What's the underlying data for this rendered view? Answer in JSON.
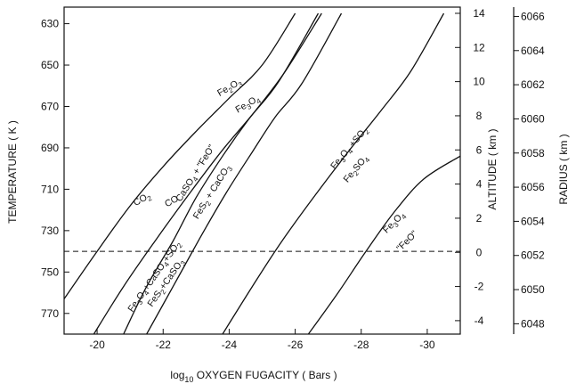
{
  "chart_data": {
    "type": "line",
    "title": "",
    "xlabel": "log10 OXYGEN FUGACITY ( Bars )",
    "xlabel_main": "log",
    "xlabel_sub": "10",
    "xlabel_rest": " OXYGEN FUGACITY ( Bars )",
    "ylabel": "TEMPERATURE ( K )",
    "y2label": "ALTITUDE ( km )",
    "y3label": "RADIUS ( km )",
    "xlim": [
      -19,
      -31
    ],
    "ylim": [
      622,
      780
    ],
    "x_ticks": [
      -20,
      -22,
      -24,
      -26,
      -28,
      -30
    ],
    "x_tick_labels": [
      "-20",
      "-22",
      "-24",
      "-26",
      "-28",
      "-30"
    ],
    "y_ticks": [
      630,
      650,
      670,
      690,
      710,
      730,
      750,
      770
    ],
    "y_tick_labels": [
      "630",
      "650",
      "670",
      "690",
      "710",
      "730",
      "750",
      "770"
    ],
    "altitude_ticks": [
      {
        "value": 14,
        "temp": 625
      },
      {
        "value": 12,
        "temp": 641.5
      },
      {
        "value": 10,
        "temp": 658
      },
      {
        "value": 8,
        "temp": 674.5
      },
      {
        "value": 6,
        "temp": 691
      },
      {
        "value": 4,
        "temp": 707.5
      },
      {
        "value": 2,
        "temp": 724
      },
      {
        "value": 0,
        "temp": 740.5
      },
      {
        "value": -2,
        "temp": 757
      },
      {
        "value": -4,
        "temp": 773.5
      }
    ],
    "radius_ticks": [
      {
        "value": 6066,
        "temp": 626.5
      },
      {
        "value": 6064,
        "temp": 643
      },
      {
        "value": 6062,
        "temp": 659.5
      },
      {
        "value": 6060,
        "temp": 676
      },
      {
        "value": 6058,
        "temp": 692.5
      },
      {
        "value": 6056,
        "temp": 709
      },
      {
        "value": 6054,
        "temp": 725.5
      },
      {
        "value": 6052,
        "temp": 742
      },
      {
        "value": 6050,
        "temp": 758.5
      },
      {
        "value": 6048,
        "temp": 775
      }
    ],
    "reference_line": {
      "temp": 740,
      "style": "dashed"
    },
    "series": [
      {
        "x": [
          -19.0,
          -20.0,
          -21.0,
          -22.0,
          -23.0,
          -24.0,
          -25.0,
          -26.0
        ],
        "y": [
          763,
          740,
          718,
          699,
          682,
          666,
          650,
          625
        ]
      },
      {
        "x": [
          -19.9,
          -20.8,
          -21.8,
          -22.8,
          -23.8,
          -24.8,
          -25.7,
          -26.8
        ],
        "y": [
          780,
          757,
          734,
          712,
          691,
          672,
          653,
          625
        ]
      },
      {
        "x": [
          -20.8,
          -21.5,
          -22.3,
          -23.0,
          -23.8,
          -24.6,
          -25.5,
          -26.7
        ],
        "y": [
          780,
          757,
          735,
          714,
          694,
          676,
          658,
          625
        ]
      },
      {
        "x": [
          -21.5,
          -22.3,
          -23.1,
          -23.9,
          -24.7,
          -25.4,
          -26.2,
          -27.4
        ],
        "y": [
          780,
          757,
          734,
          712,
          692,
          675,
          659,
          625
        ]
      },
      {
        "x": [
          -23.8,
          -24.7,
          -25.6,
          -26.6,
          -27.6,
          -28.6,
          -29.5,
          -30.5
        ],
        "y": [
          780,
          757,
          735,
          713,
          692,
          672,
          653,
          625
        ]
      },
      {
        "x": [
          -26.4,
          -27.3,
          -28.1,
          -29.0,
          -29.9,
          -31.0
        ],
        "y": [
          780,
          760,
          741,
          721,
          705,
          694
        ]
      }
    ],
    "annotations": [
      {
        "parts": [
          {
            "t": "Fe"
          },
          {
            "t": "2",
            "sub": true
          },
          {
            "t": "O"
          },
          {
            "t": "3",
            "sub": true
          }
        ],
        "x": -24.05,
        "y": 662,
        "rotate": -30
      },
      {
        "parts": [
          {
            "t": "Fe"
          },
          {
            "t": "3",
            "sub": true
          },
          {
            "t": "O"
          },
          {
            "t": "4",
            "sub": true
          }
        ],
        "x": -24.6,
        "y": 670,
        "rotate": -30
      },
      {
        "parts": [
          {
            "t": "CO"
          },
          {
            "t": "2",
            "sub": true
          }
        ],
        "x": -21.4,
        "y": 716,
        "rotate": -30
      },
      {
        "parts": [
          {
            "t": "CO"
          }
        ],
        "x": -22.3,
        "y": 717,
        "rotate": -30
      },
      {
        "parts": [
          {
            "t": "CaSO"
          },
          {
            "t": "4",
            "sub": true
          },
          {
            "t": " + \"FeO\""
          }
        ],
        "x": -23.05,
        "y": 703,
        "rotate": -58
      },
      {
        "parts": [
          {
            "t": "FeS"
          },
          {
            "t": "2",
            "sub": true
          },
          {
            "t": " + CaCO"
          },
          {
            "t": "3",
            "sub": true
          }
        ],
        "x": -23.55,
        "y": 712,
        "rotate": -58
      },
      {
        "parts": [
          {
            "t": "Fe"
          },
          {
            "t": "3",
            "sub": true
          },
          {
            "t": "O"
          },
          {
            "t": "4",
            "sub": true
          },
          {
            "t": "+CaSO"
          },
          {
            "t": "4",
            "sub": true
          },
          {
            "t": "+SO"
          },
          {
            "t": "2",
            "sub": true
          }
        ],
        "x": -21.8,
        "y": 753,
        "rotate": -55
      },
      {
        "parts": [
          {
            "t": "FeS"
          },
          {
            "t": "2",
            "sub": true
          },
          {
            "t": "+CaSO"
          },
          {
            "t": "3",
            "sub": true
          }
        ],
        "x": -22.15,
        "y": 756,
        "rotate": -55
      },
      {
        "parts": [
          {
            "t": "Fe"
          },
          {
            "t": "3",
            "sub": true
          },
          {
            "t": "O"
          },
          {
            "t": "4",
            "sub": true
          },
          {
            "t": " +SO"
          },
          {
            "t": "2",
            "sub": true
          }
        ],
        "x": -27.7,
        "y": 691,
        "rotate": -50
      },
      {
        "parts": [
          {
            "t": "Fe"
          },
          {
            "t": "2",
            "sub": true
          },
          {
            "t": "SO"
          },
          {
            "t": "4",
            "sub": true
          }
        ],
        "x": -27.9,
        "y": 701,
        "rotate": -50
      },
      {
        "parts": [
          {
            "t": "Fe"
          },
          {
            "t": "3",
            "sub": true
          },
          {
            "t": "O"
          },
          {
            "t": "4",
            "sub": true
          }
        ],
        "x": -29.05,
        "y": 727,
        "rotate": -45
      },
      {
        "parts": [
          {
            "t": "\"FeO\""
          }
        ],
        "x": -29.45,
        "y": 736,
        "rotate": -45
      }
    ]
  }
}
